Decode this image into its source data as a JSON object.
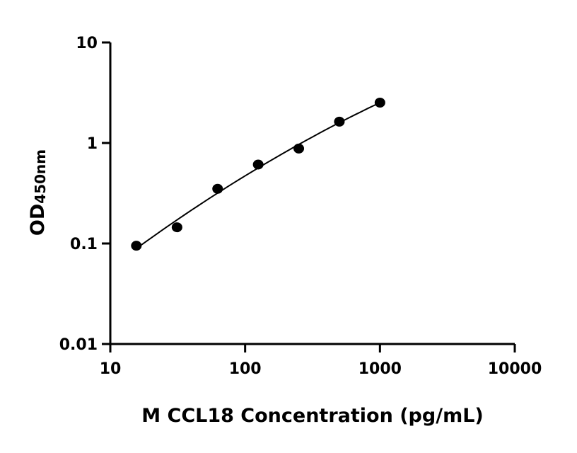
{
  "chart_data": {
    "type": "scatter",
    "title": "",
    "xlabel": "M CCL18 Concentration (pg/mL)",
    "ylabel_main": "OD",
    "ylabel_sub": "450nm",
    "x_scale": "log",
    "y_scale": "log",
    "xlim": [
      10,
      10000
    ],
    "ylim": [
      0.01,
      10
    ],
    "x_ticks": [
      "10",
      "100",
      "1000",
      "10000"
    ],
    "y_ticks": [
      "0.01",
      "0.1",
      "1",
      "10"
    ],
    "grid": false,
    "legend": "none",
    "point_color": "#000000",
    "fit_line": "log-log fit through points",
    "series": [
      {
        "x": [
          15.6,
          31.25,
          62.5,
          125,
          250,
          500,
          1000
        ],
        "y": [
          0.095,
          0.145,
          0.35,
          0.61,
          0.88,
          1.63,
          2.52
        ]
      }
    ]
  }
}
